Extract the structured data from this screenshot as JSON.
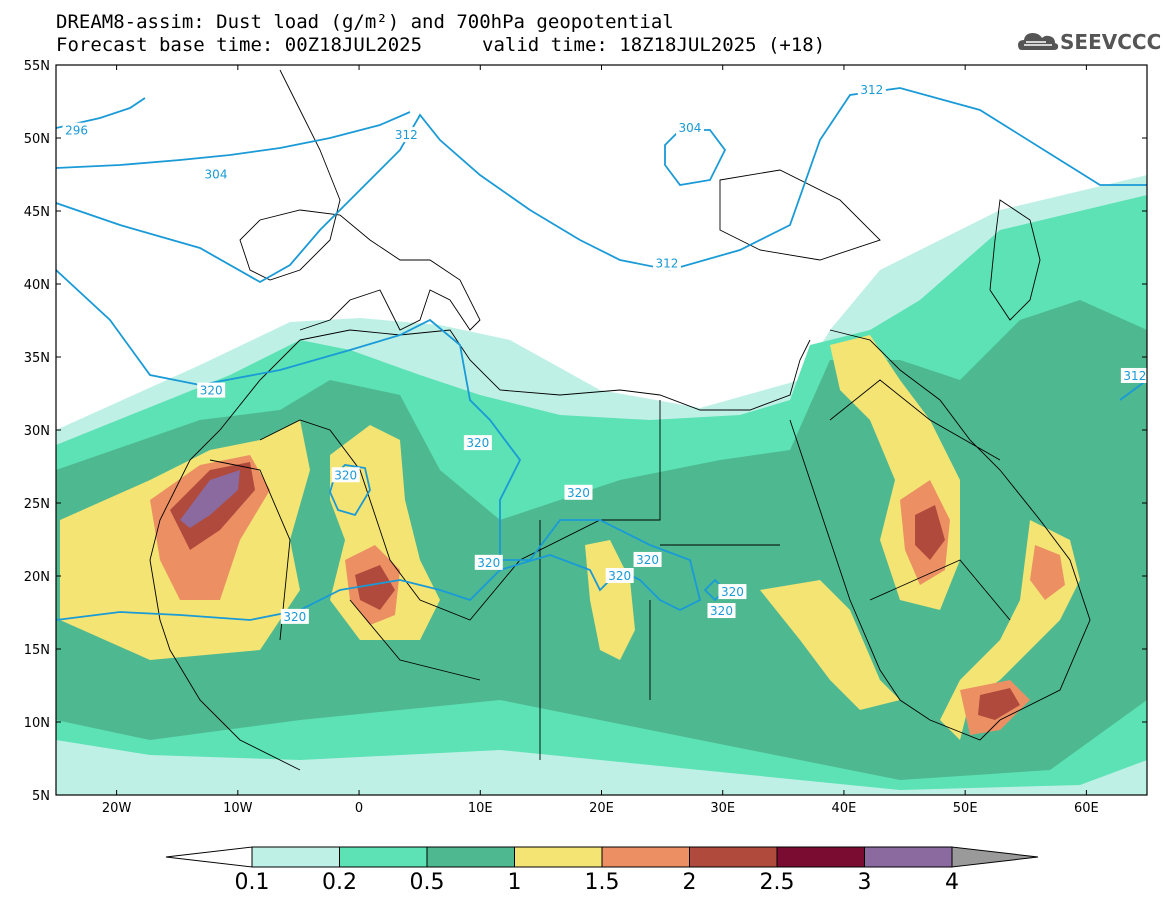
{
  "header": {
    "title_line1": "DREAM8-assim: Dust load (g/m²) and 700hPa geopotential",
    "title_line2": "Forecast base time: 00Z18JUL2025",
    "valid_time": "valid time: 18Z18JUL2025 (+18)",
    "logo_text": "SEEVCCC"
  },
  "map": {
    "lon_range": [
      -25,
      65
    ],
    "lat_range": [
      5,
      55
    ],
    "lat_ticks": [
      "55N",
      "50N",
      "45N",
      "40N",
      "35N",
      "30N",
      "25N",
      "20N",
      "15N",
      "10N",
      "5N"
    ],
    "lon_ticks": [
      "20W",
      "10W",
      "0",
      "10E",
      "20E",
      "30E",
      "40E",
      "50E",
      "60E"
    ],
    "contour_labels": [
      {
        "text": "296",
        "lon": -23.3,
        "lat": 50.5
      },
      {
        "text": "304",
        "lon": -11.8,
        "lat": 47.5
      },
      {
        "text": "312",
        "lon": 3.9,
        "lat": 50.2
      },
      {
        "text": "304",
        "lon": 27.3,
        "lat": 50.7
      },
      {
        "text": "312",
        "lon": 42.3,
        "lat": 53.3
      },
      {
        "text": "312",
        "lon": 25.4,
        "lat": 41.4
      },
      {
        "text": "320",
        "lon": -12.2,
        "lat": 32.7
      },
      {
        "text": "320",
        "lon": 9.8,
        "lat": 29.1
      },
      {
        "text": "320",
        "lon": -1.1,
        "lat": 26.9
      },
      {
        "text": "320",
        "lon": 18.1,
        "lat": 25.7
      },
      {
        "text": "320",
        "lon": 10.7,
        "lat": 20.9
      },
      {
        "text": "320",
        "lon": 23.8,
        "lat": 21.1
      },
      {
        "text": "320",
        "lon": 21.5,
        "lat": 20.0
      },
      {
        "text": "320",
        "lon": 30.8,
        "lat": 18.9
      },
      {
        "text": "320",
        "lon": 29.9,
        "lat": 17.6
      },
      {
        "text": "320",
        "lon": -5.3,
        "lat": 17.2
      },
      {
        "text": "312",
        "lon": 64.0,
        "lat": 33.7
      }
    ]
  },
  "colorbar": {
    "labels": [
      "0.1",
      "0.2",
      "0.5",
      "1",
      "1.5",
      "2",
      "2.5",
      "3",
      "4"
    ],
    "colors": [
      "#bff0e6",
      "#5ce2b4",
      "#4eb891",
      "#f3e474",
      "#ec9064",
      "#b04a3c",
      "#7b0c31",
      "#8a6a9f"
    ],
    "low_end_color": "#ffffff",
    "high_end_color": "#9a9a9a"
  },
  "colors": {
    "contour": "#1a9ad6",
    "border": "#000000",
    "c01": "#bff0e6",
    "c02": "#5ce2b4",
    "c05": "#4eb891",
    "c1": "#f3e474",
    "c15": "#ec9064",
    "c2": "#b04a3c",
    "c25": "#7b0c31",
    "c3": "#8a6a9f"
  }
}
